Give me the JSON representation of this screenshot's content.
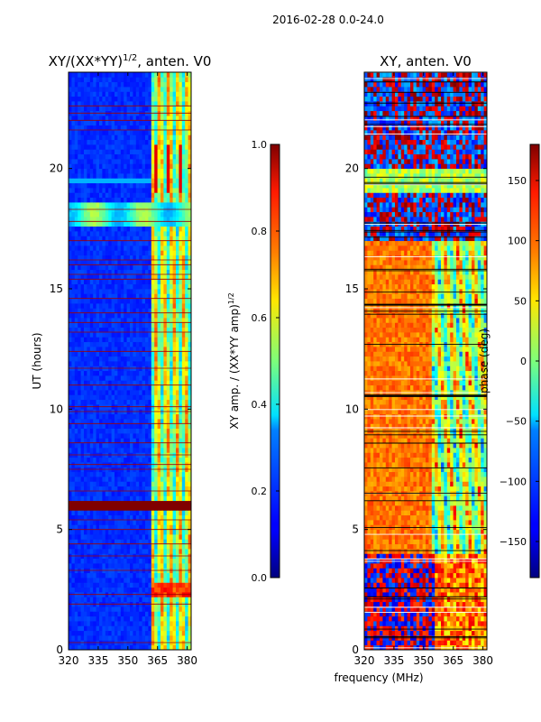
{
  "figure": {
    "suptitle": "2016-02-28 0.0-24.0",
    "shared_xlabel": "frequency (MHz)"
  },
  "chart_data": [
    {
      "type": "heatmap",
      "title": "XY/(XX*YY)",
      "title_sup": "1/2",
      "title_suffix": ", anten. V0",
      "xlabel": "",
      "ylabel": "UT (hours)",
      "xlim": [
        320,
        382
      ],
      "ylim": [
        0,
        24
      ],
      "xticks": [
        320,
        335,
        350,
        365,
        380
      ],
      "yticks": [
        0,
        5,
        10,
        15,
        20
      ],
      "colorbar": {
        "label": "XY amp. / (XX*YY amp)",
        "label_sup": "1/2",
        "range": [
          0.0,
          1.0
        ],
        "ticks": [
          "0.0",
          "0.2",
          "0.4",
          "0.6",
          "0.8",
          "1.0"
        ],
        "colormap": "jet"
      }
    },
    {
      "type": "heatmap",
      "title": "XY, anten. V0",
      "xlabel": "",
      "ylabel": "",
      "xlim": [
        320,
        382
      ],
      "ylim": [
        0,
        24
      ],
      "xticks": [
        320,
        335,
        350,
        365,
        380
      ],
      "yticks": [
        0,
        5,
        10,
        15,
        20
      ],
      "colorbar": {
        "label": "phase (deg)",
        "range": [
          -180,
          180
        ],
        "ticks": [
          "−150",
          "−100",
          "−50",
          "0",
          "50",
          "100",
          "150"
        ],
        "tick_values": [
          -150,
          -100,
          -50,
          0,
          50,
          100,
          150
        ],
        "colormap": "jet"
      }
    }
  ]
}
